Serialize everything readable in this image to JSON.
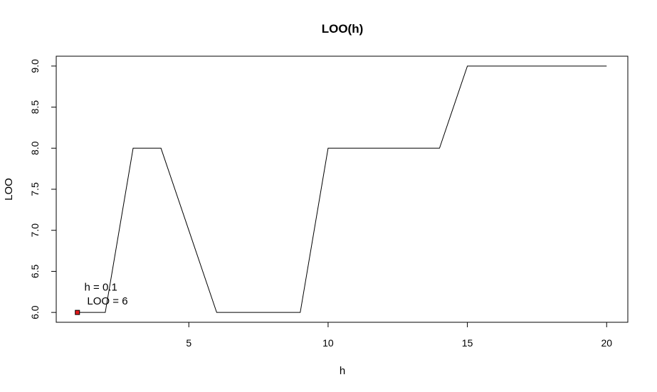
{
  "chart_data": {
    "type": "line",
    "title": "LOO(h)",
    "xlabel": "h",
    "ylabel": "LOO",
    "x": [
      1,
      2,
      3,
      4,
      5,
      6,
      7,
      8,
      9,
      10,
      11,
      12,
      13,
      14,
      15,
      16,
      17,
      18,
      19,
      20
    ],
    "series": [
      {
        "values": [
          6,
          6,
          8,
          8,
          7,
          6,
          6,
          6,
          6,
          8,
          8,
          8,
          8,
          8,
          9,
          9,
          9,
          9,
          9,
          9
        ]
      }
    ],
    "xlim": [
      0.24,
      20.76
    ],
    "ylim": [
      5.88,
      9.12
    ],
    "xticks": [
      "5",
      "10",
      "15",
      "20"
    ],
    "yticks": [
      "6.0",
      "6.5",
      "7.0",
      "7.5",
      "8.0",
      "8.5",
      "9.0"
    ],
    "line_color": "#000000",
    "grid": false,
    "marker": {
      "x": 1,
      "y": 6,
      "color": "#e31a1c",
      "shape": "square"
    },
    "annotations": [
      {
        "text": "h =  0.1",
        "x": 1.25,
        "y": 6.31
      },
      {
        "text": "LOO =  6",
        "x": 1.35,
        "y": 6.14
      }
    ]
  }
}
